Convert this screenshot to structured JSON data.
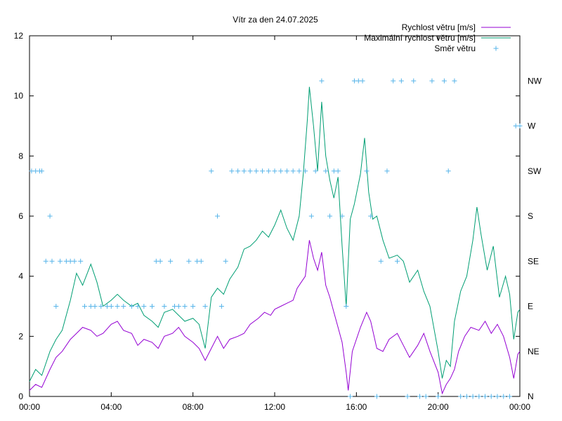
{
  "chart_data": {
    "type": "line",
    "title": "Vítr za den 24.07.2025",
    "xlabel": "",
    "ylabel": "",
    "x_ticks": [
      "00:00",
      "04:00",
      "08:00",
      "12:00",
      "16:00",
      "20:00",
      "00:00"
    ],
    "x_range_hours": [
      0,
      24
    ],
    "ylim": [
      0,
      12
    ],
    "y_ticks": [
      0,
      2,
      4,
      6,
      8,
      10,
      12
    ],
    "y2_ticks": [
      "N",
      "NE",
      "E",
      "SE",
      "S",
      "SW",
      "W",
      "NW"
    ],
    "grid": false,
    "legend_position": "top-right",
    "series": [
      {
        "name": "Rychlost větru [m/s]",
        "color": "#9400d3",
        "style": "line",
        "points": [
          [
            0.0,
            0.2
          ],
          [
            0.3,
            0.4
          ],
          [
            0.6,
            0.3
          ],
          [
            1.0,
            0.9
          ],
          [
            1.3,
            1.3
          ],
          [
            1.6,
            1.5
          ],
          [
            2.0,
            1.9
          ],
          [
            2.3,
            2.1
          ],
          [
            2.6,
            2.3
          ],
          [
            3.0,
            2.2
          ],
          [
            3.3,
            2.0
          ],
          [
            3.6,
            2.1
          ],
          [
            4.0,
            2.4
          ],
          [
            4.3,
            2.5
          ],
          [
            4.6,
            2.2
          ],
          [
            5.0,
            2.1
          ],
          [
            5.3,
            1.7
          ],
          [
            5.6,
            1.9
          ],
          [
            6.0,
            1.8
          ],
          [
            6.3,
            1.6
          ],
          [
            6.6,
            2.0
          ],
          [
            7.0,
            2.1
          ],
          [
            7.3,
            2.3
          ],
          [
            7.6,
            2.0
          ],
          [
            8.0,
            1.8
          ],
          [
            8.3,
            1.6
          ],
          [
            8.6,
            1.2
          ],
          [
            8.9,
            1.6
          ],
          [
            9.2,
            2.0
          ],
          [
            9.5,
            1.6
          ],
          [
            9.8,
            1.9
          ],
          [
            10.2,
            2.0
          ],
          [
            10.5,
            2.1
          ],
          [
            10.8,
            2.4
          ],
          [
            11.2,
            2.6
          ],
          [
            11.5,
            2.8
          ],
          [
            11.8,
            2.7
          ],
          [
            12.0,
            2.9
          ],
          [
            12.3,
            3.0
          ],
          [
            12.6,
            3.1
          ],
          [
            12.9,
            3.2
          ],
          [
            13.1,
            3.6
          ],
          [
            13.3,
            3.8
          ],
          [
            13.5,
            4.0
          ],
          [
            13.7,
            5.2
          ],
          [
            13.9,
            4.6
          ],
          [
            14.1,
            4.2
          ],
          [
            14.3,
            4.8
          ],
          [
            14.5,
            3.7
          ],
          [
            14.7,
            3.3
          ],
          [
            14.9,
            2.8
          ],
          [
            15.1,
            2.3
          ],
          [
            15.3,
            1.8
          ],
          [
            15.5,
            0.8
          ],
          [
            15.6,
            0.2
          ],
          [
            15.8,
            1.5
          ],
          [
            16.0,
            1.9
          ],
          [
            16.2,
            2.3
          ],
          [
            16.5,
            2.8
          ],
          [
            16.7,
            2.5
          ],
          [
            17.0,
            1.6
          ],
          [
            17.3,
            1.5
          ],
          [
            17.6,
            1.9
          ],
          [
            18.0,
            2.1
          ],
          [
            18.3,
            1.7
          ],
          [
            18.6,
            1.3
          ],
          [
            19.0,
            1.7
          ],
          [
            19.3,
            2.1
          ],
          [
            19.6,
            1.5
          ],
          [
            20.0,
            0.8
          ],
          [
            20.2,
            0.1
          ],
          [
            20.4,
            0.4
          ],
          [
            20.6,
            0.6
          ],
          [
            20.8,
            0.9
          ],
          [
            21.0,
            1.5
          ],
          [
            21.3,
            2.0
          ],
          [
            21.6,
            2.3
          ],
          [
            22.0,
            2.2
          ],
          [
            22.3,
            2.5
          ],
          [
            22.6,
            2.1
          ],
          [
            22.9,
            2.4
          ],
          [
            23.2,
            2.0
          ],
          [
            23.5,
            1.3
          ],
          [
            23.7,
            0.6
          ],
          [
            23.9,
            1.4
          ],
          [
            24.0,
            1.5
          ]
        ]
      },
      {
        "name": "Maximální rychlost větru [m/s]",
        "color": "#009e73",
        "style": "line",
        "points": [
          [
            0.0,
            0.5
          ],
          [
            0.3,
            0.9
          ],
          [
            0.6,
            0.7
          ],
          [
            1.0,
            1.5
          ],
          [
            1.3,
            1.9
          ],
          [
            1.6,
            2.2
          ],
          [
            2.0,
            3.2
          ],
          [
            2.3,
            4.1
          ],
          [
            2.6,
            3.7
          ],
          [
            3.0,
            4.4
          ],
          [
            3.3,
            3.8
          ],
          [
            3.6,
            3.0
          ],
          [
            4.0,
            3.2
          ],
          [
            4.3,
            3.4
          ],
          [
            4.6,
            3.2
          ],
          [
            5.0,
            3.0
          ],
          [
            5.3,
            3.1
          ],
          [
            5.6,
            2.7
          ],
          [
            6.0,
            2.5
          ],
          [
            6.3,
            2.3
          ],
          [
            6.6,
            2.8
          ],
          [
            7.0,
            2.9
          ],
          [
            7.3,
            2.7
          ],
          [
            7.6,
            2.5
          ],
          [
            8.0,
            2.6
          ],
          [
            8.3,
            2.4
          ],
          [
            8.6,
            1.6
          ],
          [
            8.9,
            3.3
          ],
          [
            9.2,
            3.6
          ],
          [
            9.5,
            3.4
          ],
          [
            9.8,
            3.9
          ],
          [
            10.2,
            4.3
          ],
          [
            10.5,
            4.9
          ],
          [
            10.8,
            5.0
          ],
          [
            11.1,
            5.2
          ],
          [
            11.4,
            5.5
          ],
          [
            11.7,
            5.3
          ],
          [
            12.0,
            5.7
          ],
          [
            12.3,
            6.2
          ],
          [
            12.6,
            5.6
          ],
          [
            12.9,
            5.2
          ],
          [
            13.2,
            6.0
          ],
          [
            13.4,
            7.4
          ],
          [
            13.6,
            9.2
          ],
          [
            13.7,
            10.3
          ],
          [
            13.9,
            9.0
          ],
          [
            14.1,
            7.5
          ],
          [
            14.3,
            9.8
          ],
          [
            14.5,
            8.0
          ],
          [
            14.7,
            7.2
          ],
          [
            14.9,
            6.6
          ],
          [
            15.1,
            7.3
          ],
          [
            15.3,
            5.0
          ],
          [
            15.5,
            3.0
          ],
          [
            15.7,
            5.9
          ],
          [
            15.9,
            6.4
          ],
          [
            16.2,
            7.4
          ],
          [
            16.4,
            8.6
          ],
          [
            16.6,
            6.8
          ],
          [
            16.8,
            5.9
          ],
          [
            17.0,
            6.0
          ],
          [
            17.3,
            5.2
          ],
          [
            17.6,
            4.6
          ],
          [
            18.0,
            4.7
          ],
          [
            18.3,
            4.5
          ],
          [
            18.6,
            3.8
          ],
          [
            19.0,
            4.2
          ],
          [
            19.3,
            3.5
          ],
          [
            19.6,
            3.0
          ],
          [
            20.0,
            1.5
          ],
          [
            20.2,
            0.6
          ],
          [
            20.4,
            1.2
          ],
          [
            20.6,
            1.0
          ],
          [
            20.8,
            2.5
          ],
          [
            21.1,
            3.5
          ],
          [
            21.4,
            4.0
          ],
          [
            21.7,
            5.2
          ],
          [
            21.9,
            6.3
          ],
          [
            22.1,
            5.4
          ],
          [
            22.4,
            4.2
          ],
          [
            22.7,
            5.0
          ],
          [
            23.0,
            3.3
          ],
          [
            23.3,
            4.0
          ],
          [
            23.5,
            3.4
          ],
          [
            23.7,
            1.9
          ],
          [
            23.9,
            2.8
          ],
          [
            24.0,
            2.9
          ]
        ]
      },
      {
        "name": "Směr větru",
        "color": "#56b4e9",
        "style": "points",
        "axis": "right",
        "points": [
          [
            0.1,
            "SW"
          ],
          [
            0.3,
            "SW"
          ],
          [
            0.5,
            "SW"
          ],
          [
            0.6,
            "SW"
          ],
          [
            0.8,
            "SE"
          ],
          [
            1.0,
            "S"
          ],
          [
            1.1,
            "SE"
          ],
          [
            1.3,
            "E"
          ],
          [
            1.5,
            "SE"
          ],
          [
            1.8,
            "SE"
          ],
          [
            2.0,
            "SE"
          ],
          [
            2.2,
            "SE"
          ],
          [
            2.5,
            "SE"
          ],
          [
            2.7,
            "E"
          ],
          [
            3.0,
            "E"
          ],
          [
            3.2,
            "E"
          ],
          [
            3.5,
            "E"
          ],
          [
            3.8,
            "E"
          ],
          [
            4.0,
            "E"
          ],
          [
            4.3,
            "E"
          ],
          [
            4.6,
            "E"
          ],
          [
            5.0,
            "E"
          ],
          [
            5.3,
            "E"
          ],
          [
            5.6,
            "E"
          ],
          [
            6.0,
            "E"
          ],
          [
            6.2,
            "SE"
          ],
          [
            6.4,
            "SE"
          ],
          [
            6.6,
            "E"
          ],
          [
            6.9,
            "SE"
          ],
          [
            7.1,
            "E"
          ],
          [
            7.3,
            "E"
          ],
          [
            7.6,
            "E"
          ],
          [
            7.8,
            "SE"
          ],
          [
            8.0,
            "E"
          ],
          [
            8.2,
            "SE"
          ],
          [
            8.4,
            "SE"
          ],
          [
            8.6,
            "E"
          ],
          [
            8.9,
            "SW"
          ],
          [
            9.2,
            "S"
          ],
          [
            9.4,
            "E"
          ],
          [
            9.6,
            "SE"
          ],
          [
            9.9,
            "SW"
          ],
          [
            10.2,
            "SW"
          ],
          [
            10.5,
            "SW"
          ],
          [
            10.8,
            "SW"
          ],
          [
            11.1,
            "SW"
          ],
          [
            11.4,
            "SW"
          ],
          [
            11.7,
            "SW"
          ],
          [
            12.0,
            "SW"
          ],
          [
            12.3,
            "SW"
          ],
          [
            12.6,
            "SW"
          ],
          [
            12.9,
            "SW"
          ],
          [
            13.2,
            "SW"
          ],
          [
            13.5,
            "SW"
          ],
          [
            13.8,
            "S"
          ],
          [
            14.0,
            "SW"
          ],
          [
            14.3,
            "NW"
          ],
          [
            14.5,
            "SW"
          ],
          [
            14.7,
            "S"
          ],
          [
            14.9,
            "SW"
          ],
          [
            15.1,
            "SW"
          ],
          [
            15.3,
            "S"
          ],
          [
            15.5,
            "E"
          ],
          [
            15.7,
            "N"
          ],
          [
            15.9,
            "NW"
          ],
          [
            16.1,
            "NW"
          ],
          [
            16.3,
            "NW"
          ],
          [
            16.5,
            "SW"
          ],
          [
            16.7,
            "S"
          ],
          [
            17.0,
            "N"
          ],
          [
            17.2,
            "SE"
          ],
          [
            17.5,
            "SW"
          ],
          [
            17.8,
            "NW"
          ],
          [
            18.0,
            "SE"
          ],
          [
            18.2,
            "NW"
          ],
          [
            18.5,
            "N"
          ],
          [
            18.8,
            "NW"
          ],
          [
            19.1,
            "N"
          ],
          [
            19.4,
            "N"
          ],
          [
            19.7,
            "NW"
          ],
          [
            20.0,
            "N"
          ],
          [
            20.3,
            "NW"
          ],
          [
            20.5,
            "SW"
          ],
          [
            20.8,
            "NW"
          ],
          [
            21.1,
            "N"
          ],
          [
            21.4,
            "N"
          ],
          [
            21.7,
            "N"
          ],
          [
            22.0,
            "N"
          ],
          [
            22.3,
            "N"
          ],
          [
            22.6,
            "N"
          ],
          [
            22.9,
            "N"
          ],
          [
            23.2,
            "N"
          ],
          [
            23.5,
            "N"
          ],
          [
            23.8,
            "W"
          ],
          [
            24.0,
            "W"
          ]
        ]
      }
    ]
  }
}
